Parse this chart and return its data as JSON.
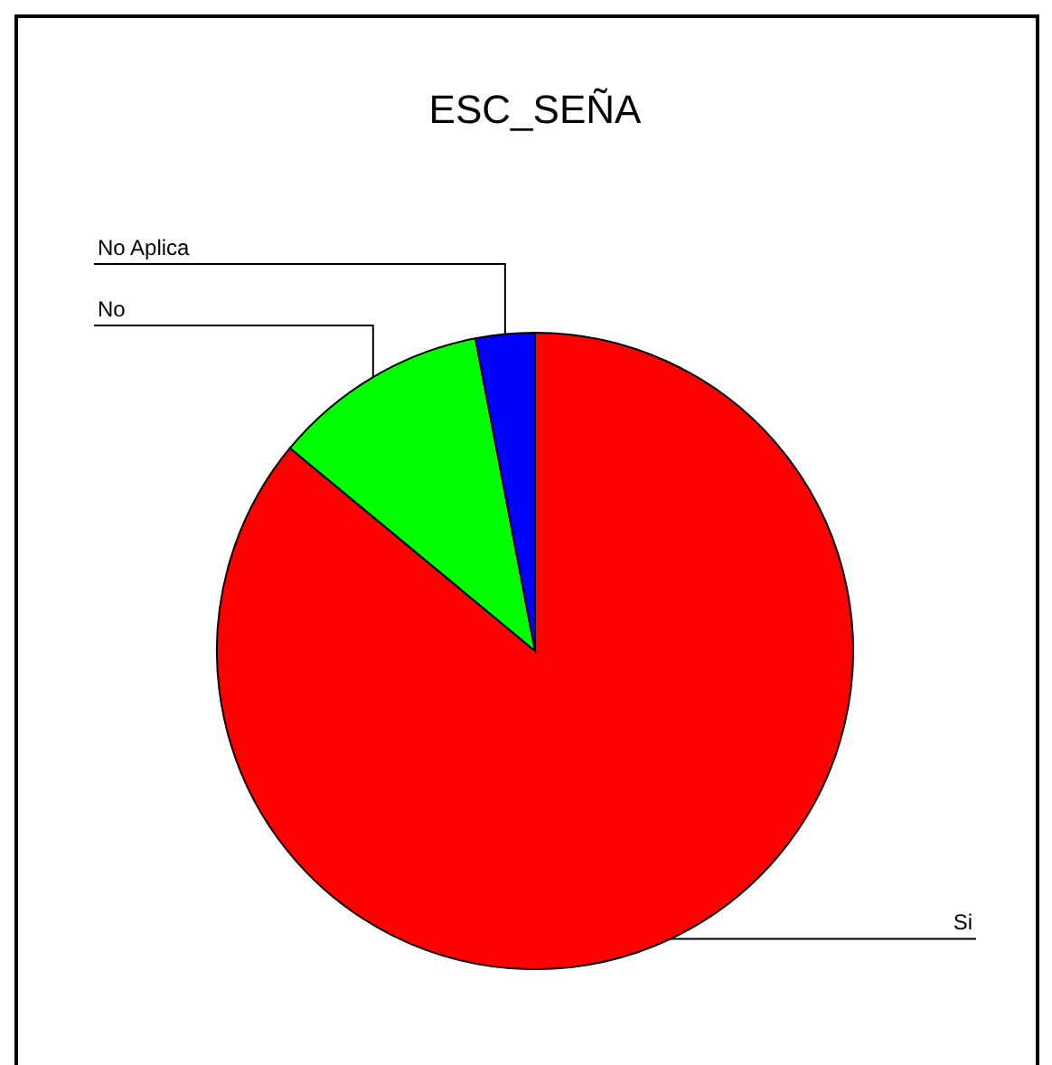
{
  "chart_data": {
    "type": "pie",
    "title": "ESC_SEÑA",
    "categories": [
      "Si",
      "No",
      "No Aplica"
    ],
    "values": [
      86,
      11,
      3
    ],
    "colors": [
      "#ff0000",
      "#00ff00",
      "#0000ff"
    ]
  }
}
